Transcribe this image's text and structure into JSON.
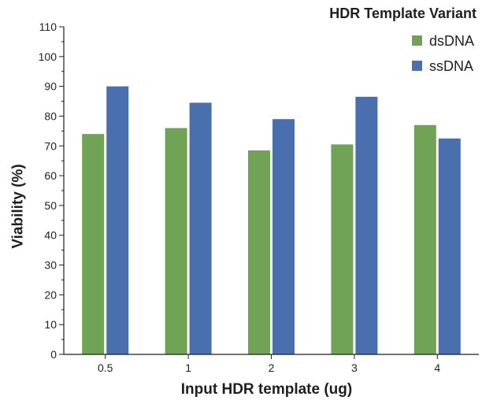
{
  "chart_data": {
    "type": "bar",
    "title": "",
    "xlabel": "Input HDR template (ug)",
    "ylabel": "Viability (%)",
    "categories": [
      "0.5",
      "1",
      "2",
      "3",
      "4"
    ],
    "ylim": [
      0,
      110
    ],
    "yticks": [
      0,
      10,
      20,
      30,
      40,
      50,
      60,
      70,
      80,
      90,
      100,
      110
    ],
    "grid": false,
    "legend": {
      "title": "HDR Template Variant",
      "placement": "top-right"
    },
    "series": [
      {
        "name": "dsDNA",
        "color": "#70a356",
        "values": [
          74,
          76,
          68.5,
          70.5,
          77
        ]
      },
      {
        "name": "ssDNA",
        "color": "#4a6faf",
        "values": [
          90,
          84.5,
          79,
          86.5,
          72.5
        ]
      }
    ]
  }
}
